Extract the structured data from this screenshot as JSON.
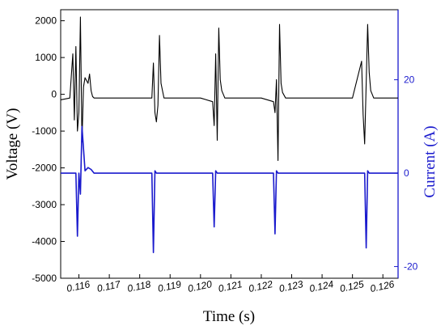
{
  "chart_data": {
    "type": "line",
    "title": "",
    "xlabel": "Time (s)",
    "ylabel_left": "Voltage (V)",
    "ylabel_right": "Current (A)",
    "xlim": [
      0.1154,
      0.1265
    ],
    "ylim_left": [
      -5000,
      2300
    ],
    "ylim_right": [
      -22.5,
      35
    ],
    "x_ticks": [
      "0.116",
      "0.117",
      "0.118",
      "0.119",
      "0.120",
      "0.121",
      "0.122",
      "0.123",
      "0.124",
      "0.125",
      "0.126"
    ],
    "y_left_ticks": [
      "2000",
      "1000",
      "0",
      "-1000",
      "-2000",
      "-3000",
      "-4000",
      "-5000"
    ],
    "y_right_ticks": [
      "20",
      "0",
      "-20"
    ],
    "grid": false,
    "legend": "none",
    "colors": {
      "voltage": "#000000",
      "current": "#1a1acd",
      "right_axis": "#1a1acd"
    },
    "series": [
      {
        "axis": "left",
        "x": [
          0.1154,
          0.1157,
          0.1158,
          0.11585,
          0.1159,
          0.11595,
          0.116,
          0.11605,
          0.1161,
          0.11615,
          0.1162,
          0.1163,
          0.11635,
          0.1164,
          0.11645,
          0.1165,
          0.117,
          0.1175,
          0.118,
          0.1184,
          0.11845,
          0.1185,
          0.11855,
          0.1186,
          0.11865,
          0.1187,
          0.1188,
          0.119,
          0.1195,
          0.12,
          0.1204,
          0.12045,
          0.1205,
          0.12055,
          0.1206,
          0.12065,
          0.1207,
          0.1208,
          0.121,
          0.1215,
          0.122,
          0.1224,
          0.12245,
          0.1225,
          0.12255,
          0.1226,
          0.12265,
          0.1227,
          0.1228,
          0.123,
          0.1235,
          0.124,
          0.1245,
          0.125,
          0.1253,
          0.12535,
          0.1254,
          0.12545,
          0.1255,
          0.12555,
          0.1256,
          0.1257,
          0.126,
          0.1265
        ],
        "y": [
          -150,
          -100,
          1100,
          -700,
          1300,
          -1000,
          -500,
          2100,
          -1300,
          200,
          450,
          300,
          550,
          100,
          -60,
          -100,
          -100,
          -100,
          -100,
          -100,
          850,
          -500,
          -750,
          -300,
          1600,
          300,
          -100,
          -100,
          -100,
          -100,
          -200,
          -850,
          1100,
          -1250,
          1800,
          400,
          100,
          -100,
          -100,
          -100,
          -100,
          -200,
          -500,
          400,
          -1800,
          1900,
          300,
          50,
          -100,
          -100,
          -100,
          -100,
          -100,
          -100,
          900,
          -550,
          -1350,
          300,
          1900,
          600,
          100,
          -100,
          -100,
          -100
        ]
      },
      {
        "axis": "right",
        "x": [
          0.1154,
          0.1158,
          0.1159,
          0.11595,
          0.116,
          0.11605,
          0.1161,
          0.1162,
          0.1163,
          0.1164,
          0.1165,
          0.1175,
          0.1184,
          0.11845,
          0.1185,
          0.11855,
          0.1195,
          0.1204,
          0.12045,
          0.1205,
          0.12055,
          0.1215,
          0.1224,
          0.12245,
          0.1225,
          0.12255,
          0.1235,
          0.1245,
          0.1254,
          0.12545,
          0.1255,
          0.12555,
          0.1265
        ],
        "y": [
          0,
          0,
          0,
          -13.5,
          0,
          -4.5,
          10,
          0.5,
          1.2,
          0.8,
          0,
          0,
          0,
          -17,
          0.5,
          0,
          0,
          0,
          -11.5,
          0.5,
          0,
          0,
          0,
          -13,
          0.5,
          0,
          0,
          0,
          0,
          -16,
          0.5,
          0,
          0
        ]
      }
    ]
  }
}
